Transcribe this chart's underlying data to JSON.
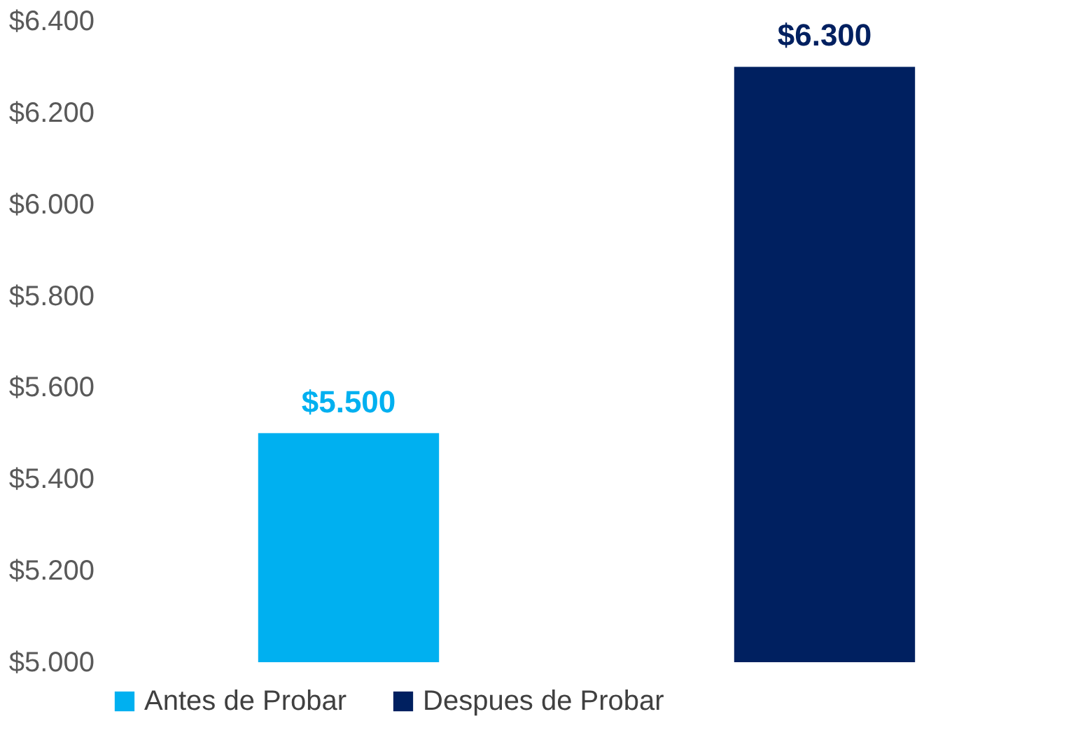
{
  "chart_data": {
    "type": "bar",
    "stacked": true,
    "categories": [
      null,
      null
    ],
    "series": [
      {
        "name": "Antes de Probar",
        "color": "#00b0f0",
        "values": [
          5500,
          null
        ],
        "value_labels": [
          "$5.500",
          null
        ]
      },
      {
        "name": "Despues de Probar",
        "color": "#002060",
        "values": [
          null,
          6300
        ],
        "value_labels": [
          null,
          "$6.300"
        ]
      }
    ],
    "ylim": [
      5000,
      6400
    ],
    "yticks": [
      {
        "value": 5000,
        "label": "$5.000"
      },
      {
        "value": 5200,
        "label": "$5.200"
      },
      {
        "value": 5400,
        "label": "$5.400"
      },
      {
        "value": 5600,
        "label": "$5.600"
      },
      {
        "value": 5800,
        "label": "$5.800"
      },
      {
        "value": 6000,
        "label": "$6.000"
      },
      {
        "value": 6200,
        "label": "$6.200"
      },
      {
        "value": 6400,
        "label": "$6.400"
      }
    ],
    "grid": false,
    "legend": "bottom"
  }
}
